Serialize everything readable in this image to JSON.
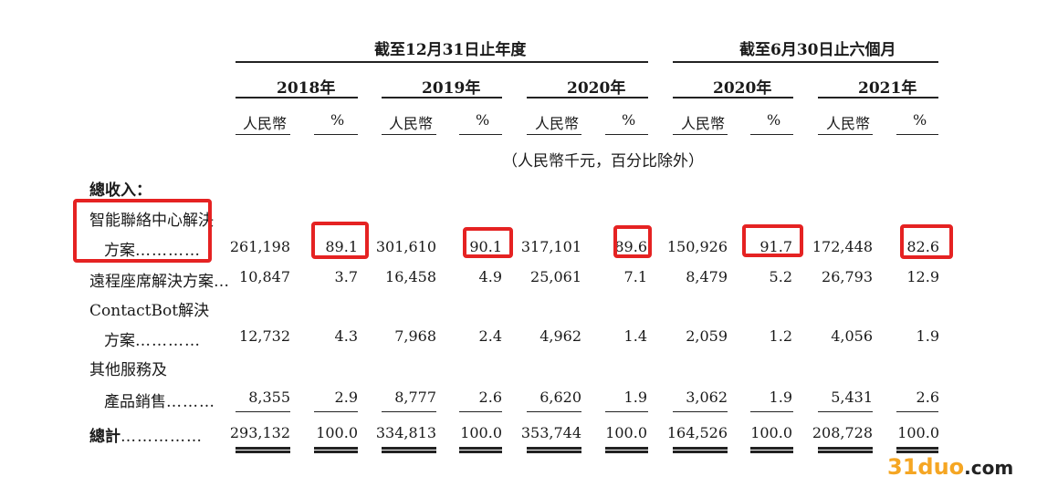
{
  "header": {
    "group1": "截至12月31日止年度",
    "group2": "截至6月30日止六個月"
  },
  "years": [
    "2018年",
    "2019年",
    "2020年",
    "2020年",
    "2021年"
  ],
  "subheads": {
    "rmb": "人民幣",
    "pct": "%"
  },
  "unit_note": "（人民幣千元，百分比除外）",
  "section_label": "總收入：",
  "rows": [
    {
      "label1": "智能聯絡中心解決",
      "label2": "方案",
      "dots": "…………",
      "values": [
        "261,198",
        "89.1",
        "301,610",
        "90.1",
        "317,101",
        "89.6",
        "150,926",
        "91.7",
        "172,448",
        "82.6"
      ]
    },
    {
      "label1": "遠程座席解決方案",
      "dots": "…",
      "values": [
        "10,847",
        "3.7",
        "16,458",
        "4.9",
        "25,061",
        "7.1",
        "8,479",
        "5.2",
        "26,793",
        "12.9"
      ]
    },
    {
      "label1": "ContactBot解決",
      "label2": "方案",
      "dots": "…………",
      "values": [
        "12,732",
        "4.3",
        "7,968",
        "2.4",
        "4,962",
        "1.4",
        "2,059",
        "1.2",
        "4,056",
        "1.9"
      ]
    },
    {
      "label1": "其他服務及",
      "label2": "產品銷售",
      "dots": "………",
      "values": [
        "8,355",
        "2.9",
        "8,777",
        "2.6",
        "6,620",
        "1.9",
        "3,062",
        "1.9",
        "5,431",
        "2.6"
      ]
    },
    {
      "label1": "總計",
      "dots": "……………",
      "values": [
        "293,132",
        "100.0",
        "334,813",
        "100.0",
        "353,744",
        "100.0",
        "164,526",
        "100.0",
        "208,728",
        "100.0"
      ]
    }
  ],
  "watermark": {
    "part1": "31duo",
    "part2": ".com",
    "color1": "#f5a623",
    "color2": "#222222"
  },
  "highlight_color": "#e52222"
}
